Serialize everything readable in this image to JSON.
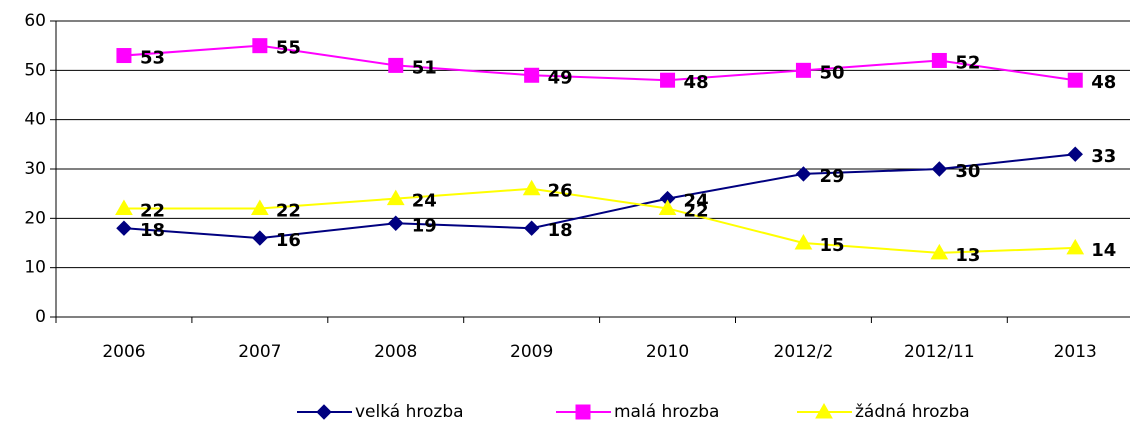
{
  "chart_data": {
    "type": "line",
    "categories": [
      "2006",
      "2007",
      "2008",
      "2009",
      "2010",
      "2012/2",
      "2012/11",
      "2013"
    ],
    "series": [
      {
        "name": "velká hrozba",
        "color": "#000080",
        "marker": "diamond",
        "values": [
          18,
          16,
          19,
          18,
          24,
          29,
          30,
          33
        ]
      },
      {
        "name": "malá hrozba",
        "color": "#ff00ff",
        "marker": "square",
        "values": [
          53,
          55,
          51,
          49,
          48,
          50,
          52,
          48
        ]
      },
      {
        "name": "žádná hrozba",
        "color": "#ffff00",
        "marker": "triangle",
        "values": [
          22,
          22,
          24,
          26,
          22,
          15,
          13,
          14
        ]
      }
    ],
    "ylim": [
      0,
      60
    ],
    "yticks": [
      0,
      10,
      20,
      30,
      40,
      50,
      60
    ],
    "grid": true,
    "legend": "bottom"
  }
}
